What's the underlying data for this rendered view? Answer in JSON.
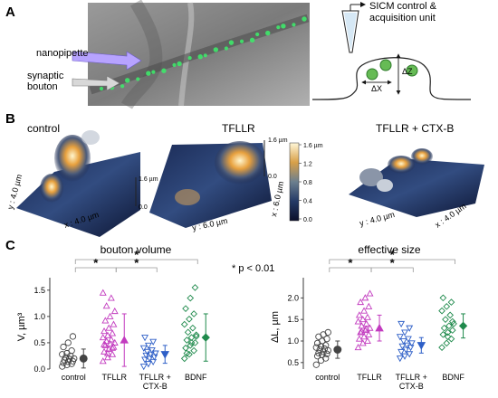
{
  "panel_a": {
    "letter": "A",
    "micrograph_labels": {
      "pipette": "nanopipette",
      "bouton": "synaptic\nbouton"
    },
    "schematic": {
      "unit_label": "SICM control &\nacquisition unit",
      "dz": "ΔZ",
      "dx": "ΔX"
    }
  },
  "panel_b": {
    "letter": "B",
    "maps": [
      {
        "title": "control",
        "scale_top": "1.6 µm",
        "scale_bottom": "0.0",
        "axis1": "y : 4.0 µm",
        "axis2": "x : 4.0 µm"
      },
      {
        "title": "TFLLR",
        "scale_top": "1.6 µm",
        "scale_bottom": "0.0",
        "axis1": "y : 6.0 µm",
        "axis2": "x : 6.0 µm"
      },
      {
        "title": "TFLLR + CTX-B",
        "scale_top": "",
        "scale_bottom": "",
        "axis1": "y : 4.0 µm",
        "axis2": "x : 4.0 µm"
      }
    ],
    "colorbar": {
      "ticks": [
        "1.6 µm",
        "1.2",
        "0.8",
        "0.4",
        "0.0"
      ]
    }
  },
  "panel_c": {
    "letter": "C",
    "significance_note": "* p < 0.01",
    "chart_data": [
      {
        "type": "scatter",
        "title": "bouton volume",
        "ylabel": "V, µm³",
        "ylim": [
          0,
          1.6
        ],
        "yticks": [
          "0.0",
          "0.5",
          "1.0",
          "1.5"
        ],
        "categories": [
          "control",
          "TFLLR",
          "TFLLR +\nCTX-B",
          "BDNF"
        ],
        "colors": [
          "#444444",
          "#c23bbf",
          "#2e5fc7",
          "#1f8a4c"
        ],
        "markers": [
          "circle",
          "triangle-up",
          "triangle-down",
          "diamond"
        ],
        "means": [
          0.2,
          0.55,
          0.28,
          0.6
        ],
        "sd": [
          0.18,
          0.5,
          0.17,
          0.45
        ],
        "points": [
          [
            0.05,
            0.08,
            0.1,
            0.12,
            0.14,
            0.15,
            0.17,
            0.19,
            0.2,
            0.22,
            0.25,
            0.28,
            0.3,
            0.35,
            0.42,
            0.5,
            0.62
          ],
          [
            0.15,
            0.22,
            0.28,
            0.33,
            0.38,
            0.42,
            0.45,
            0.48,
            0.5,
            0.53,
            0.56,
            0.6,
            0.64,
            0.68,
            0.72,
            0.78,
            0.85,
            0.92,
            1.0,
            1.1,
            1.2,
            1.35,
            1.45,
            0.3,
            0.4,
            0.47
          ],
          [
            0.05,
            0.1,
            0.14,
            0.18,
            0.2,
            0.23,
            0.26,
            0.28,
            0.3,
            0.33,
            0.36,
            0.4,
            0.45,
            0.52,
            0.6
          ],
          [
            0.2,
            0.28,
            0.35,
            0.4,
            0.45,
            0.5,
            0.55,
            0.6,
            0.65,
            0.7,
            0.78,
            0.85,
            0.95,
            1.05,
            1.15,
            1.35,
            1.55,
            0.3,
            0.5,
            0.62
          ]
        ],
        "significance": [
          {
            "from": 0,
            "to": 1,
            "label": "*"
          },
          {
            "from": 1,
            "to": 2,
            "label": "*"
          },
          {
            "from": 0,
            "to": 3,
            "label": "*"
          }
        ]
      },
      {
        "type": "scatter",
        "title": "effective size",
        "ylabel": "ΔL, µm",
        "ylim": [
          0.35,
          2.3
        ],
        "yticks": [
          "0.5",
          "1.0",
          "1.5",
          "2.0"
        ],
        "categories": [
          "control",
          "TFLLR",
          "TFLLR +\nCTX-B",
          "BDNF"
        ],
        "colors": [
          "#444444",
          "#c23bbf",
          "#2e5fc7",
          "#1f8a4c"
        ],
        "markers": [
          "circle",
          "triangle-up",
          "triangle-down",
          "diamond"
        ],
        "means": [
          0.8,
          1.3,
          0.9,
          1.35
        ],
        "sd": [
          0.2,
          0.3,
          0.18,
          0.28
        ],
        "points": [
          [
            0.45,
            0.55,
            0.6,
            0.65,
            0.68,
            0.7,
            0.72,
            0.75,
            0.78,
            0.8,
            0.82,
            0.85,
            0.88,
            0.9,
            0.95,
            1.0,
            1.05,
            1.1,
            1.15,
            1.2
          ],
          [
            0.85,
            0.95,
            1.0,
            1.05,
            1.1,
            1.15,
            1.2,
            1.25,
            1.3,
            1.35,
            1.4,
            1.45,
            1.5,
            1.55,
            1.6,
            1.7,
            1.8,
            1.9,
            2.0,
            2.1,
            1.22,
            1.28
          ],
          [
            0.6,
            0.65,
            0.7,
            0.75,
            0.8,
            0.85,
            0.88,
            0.9,
            0.95,
            1.0,
            1.05,
            1.1,
            1.2,
            1.3,
            1.4
          ],
          [
            0.85,
            0.95,
            1.05,
            1.15,
            1.2,
            1.25,
            1.3,
            1.35,
            1.4,
            1.5,
            1.6,
            1.7,
            1.8,
            1.9,
            2.0,
            1.1,
            1.45
          ]
        ],
        "significance": [
          {
            "from": 0,
            "to": 1,
            "label": "*"
          },
          {
            "from": 1,
            "to": 2,
            "label": "*"
          },
          {
            "from": 0,
            "to": 3,
            "label": "*"
          }
        ]
      }
    ]
  }
}
